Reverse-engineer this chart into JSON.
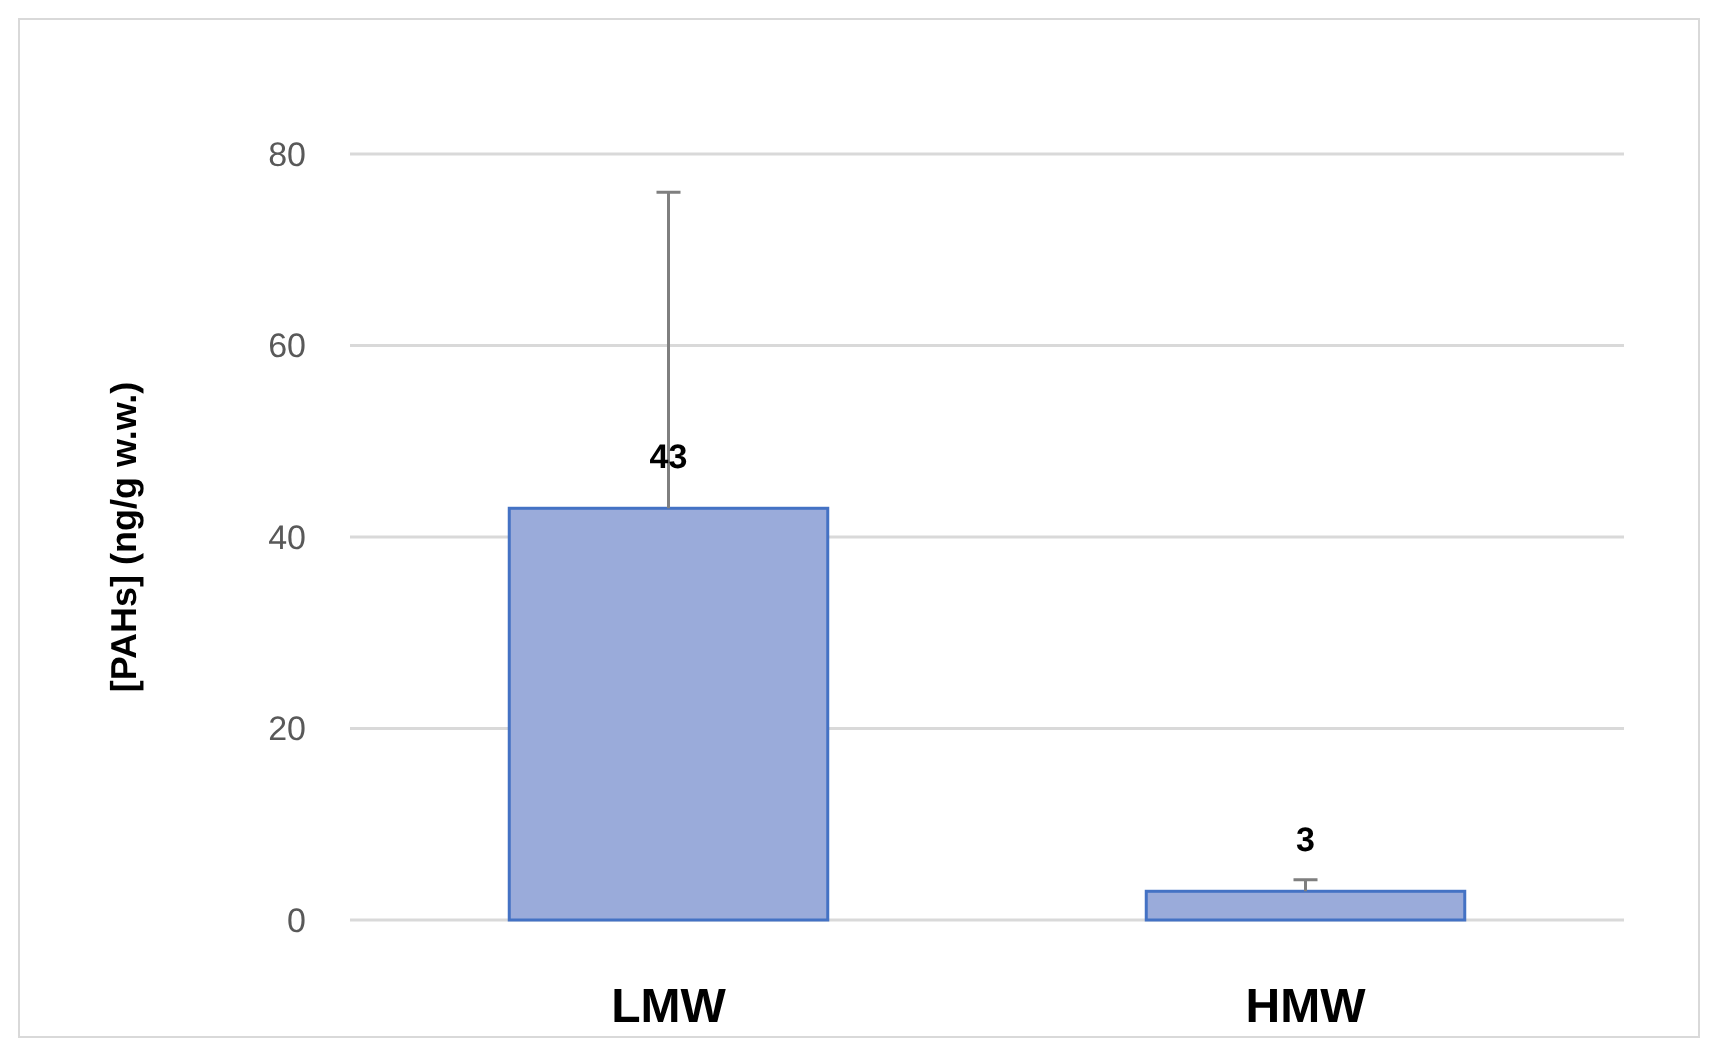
{
  "chart_data": {
    "type": "bar",
    "ylabel": "[PAHs] (ng/g w.w.)",
    "categories": [
      "LMW",
      "HMW"
    ],
    "values": [
      43,
      3
    ],
    "errors": [
      [
        43,
        76
      ],
      [
        3,
        4.2
      ]
    ],
    "color": "#9aabda",
    "ylim": [
      0,
      80
    ],
    "yticks": [
      0,
      20,
      40,
      60,
      80
    ],
    "grid": "y",
    "data_labels": true
  }
}
